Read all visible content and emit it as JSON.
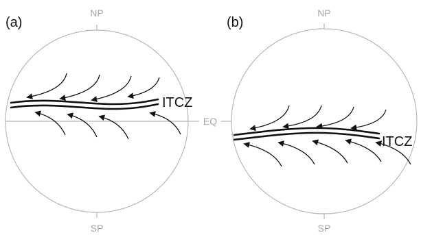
{
  "panel_a": {
    "label": "(a)",
    "north": "NP",
    "south": "SP",
    "equator": "EQ",
    "itcz": "ITCZ"
  },
  "panel_b": {
    "label": "(b)",
    "north": "NP",
    "south": "SP",
    "itcz": "ITCZ"
  },
  "colors": {
    "outline": "#b8b8b8",
    "lines": "#111111",
    "pole_text": "#a8a8a8"
  }
}
